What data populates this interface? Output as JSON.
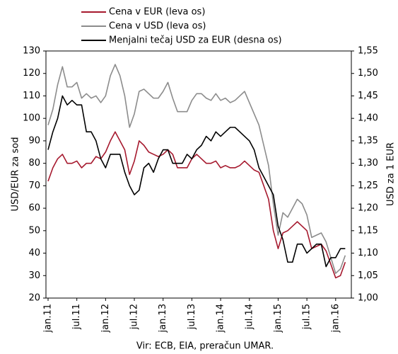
{
  "chart_data": {
    "type": "line",
    "y_label": "USD/EUR za sod",
    "y2_label": "USD za 1 EUR",
    "source": "Vir: ECB, EIA, preračun UMAR.",
    "categories": [
      "jan.11",
      null,
      null,
      null,
      null,
      null,
      "jul.11",
      null,
      null,
      null,
      null,
      null,
      "jan.12",
      null,
      null,
      null,
      null,
      null,
      "jul.12",
      null,
      null,
      null,
      null,
      null,
      "jan.13",
      null,
      null,
      null,
      null,
      null,
      "jul.13",
      null,
      null,
      null,
      null,
      null,
      "jan.14",
      null,
      null,
      null,
      null,
      null,
      "jul.14",
      null,
      null,
      null,
      null,
      null,
      "jan.15",
      null,
      null,
      null,
      null,
      null,
      "jul.15",
      null,
      null,
      null,
      null,
      null,
      "jan.16",
      null,
      null
    ],
    "ylim": [
      20,
      130
    ],
    "yticks": [
      20,
      30,
      40,
      50,
      60,
      70,
      80,
      90,
      100,
      110,
      120,
      130
    ],
    "y2lim": [
      1.0,
      1.55
    ],
    "y2ticks": [
      {
        "value": 1.0,
        "label": "1,00"
      },
      {
        "value": 1.05,
        "label": "1,05"
      },
      {
        "value": 1.1,
        "label": "1,10"
      },
      {
        "value": 1.15,
        "label": "1,15"
      },
      {
        "value": 1.2,
        "label": "1,20"
      },
      {
        "value": 1.25,
        "label": "1,25"
      },
      {
        "value": 1.3,
        "label": "1,30"
      },
      {
        "value": 1.35,
        "label": "1,35"
      },
      {
        "value": 1.4,
        "label": "1,40"
      },
      {
        "value": 1.45,
        "label": "1,45"
      },
      {
        "value": 1.5,
        "label": "1,50"
      },
      {
        "value": 1.55,
        "label": "1,55"
      }
    ],
    "series": [
      {
        "name": "Cena v EUR (leva os)",
        "color": "#a6192e",
        "axis": "y",
        "values": [
          72,
          78,
          82,
          84,
          80,
          80,
          81,
          78,
          80,
          80,
          83,
          82,
          85,
          90,
          94,
          90,
          86,
          75,
          81,
          90,
          88,
          85,
          84,
          83,
          84,
          86,
          84,
          78,
          78,
          78,
          82,
          84,
          82,
          80,
          80,
          81,
          78,
          79,
          78,
          78,
          79,
          81,
          79,
          77,
          76,
          70,
          64,
          50,
          42,
          49,
          50,
          52,
          54,
          52,
          50,
          42,
          43,
          44,
          41,
          35,
          29,
          30,
          36
        ]
      },
      {
        "name": "Cena v USD (leva os)",
        "color": "#8c8c8c",
        "axis": "y",
        "values": [
          97,
          104,
          115,
          123,
          114,
          114,
          116,
          109,
          111,
          109,
          110,
          107,
          110,
          119,
          124,
          119,
          110,
          96,
          102,
          112,
          113,
          111,
          109,
          109,
          112,
          116,
          109,
          103,
          103,
          103,
          108,
          111,
          111,
          109,
          108,
          111,
          108,
          109,
          107,
          108,
          110,
          112,
          107,
          102,
          97,
          88,
          79,
          62,
          48,
          58,
          56,
          60,
          64,
          62,
          57,
          47,
          48,
          49,
          45,
          38,
          31,
          33,
          39
        ]
      },
      {
        "name": "Menjalni tečaj USD za EUR (desna os)",
        "color": "#000000",
        "axis": "y2",
        "values": [
          1.33,
          1.37,
          1.4,
          1.45,
          1.43,
          1.44,
          1.43,
          1.43,
          1.37,
          1.37,
          1.35,
          1.31,
          1.29,
          1.32,
          1.32,
          1.32,
          1.28,
          1.25,
          1.23,
          1.24,
          1.29,
          1.3,
          1.28,
          1.31,
          1.33,
          1.33,
          1.3,
          1.3,
          1.3,
          1.32,
          1.31,
          1.33,
          1.34,
          1.36,
          1.35,
          1.37,
          1.36,
          1.37,
          1.38,
          1.38,
          1.37,
          1.36,
          1.35,
          1.33,
          1.29,
          1.27,
          1.25,
          1.23,
          1.16,
          1.13,
          1.08,
          1.08,
          1.12,
          1.12,
          1.1,
          1.11,
          1.12,
          1.12,
          1.07,
          1.09,
          1.09,
          1.11,
          1.11
        ]
      }
    ]
  }
}
